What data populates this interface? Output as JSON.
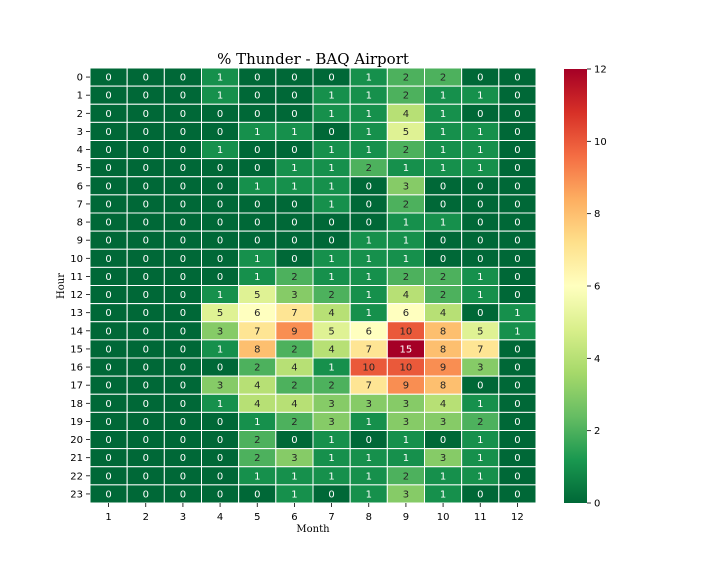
{
  "chart_data": {
    "type": "heatmap",
    "title": "% Thunder - BAQ Airport",
    "xlabel": "Month",
    "ylabel": "Hour",
    "x_categories": [
      "1",
      "2",
      "3",
      "4",
      "5",
      "6",
      "7",
      "8",
      "9",
      "10",
      "11",
      "12"
    ],
    "y_categories": [
      "0",
      "1",
      "2",
      "3",
      "4",
      "5",
      "6",
      "7",
      "8",
      "9",
      "10",
      "11",
      "12",
      "13",
      "14",
      "15",
      "16",
      "17",
      "18",
      "19",
      "20",
      "21",
      "22",
      "23"
    ],
    "values": [
      [
        0,
        0,
        0,
        1,
        0,
        0,
        0,
        1,
        2,
        2,
        0,
        0
      ],
      [
        0,
        0,
        0,
        1,
        0,
        0,
        1,
        1,
        2,
        1,
        1,
        0
      ],
      [
        0,
        0,
        0,
        0,
        0,
        0,
        1,
        1,
        4,
        1,
        0,
        0
      ],
      [
        0,
        0,
        0,
        0,
        1,
        1,
        0,
        1,
        5,
        1,
        1,
        0
      ],
      [
        0,
        0,
        0,
        1,
        0,
        0,
        1,
        1,
        2,
        1,
        1,
        0
      ],
      [
        0,
        0,
        0,
        0,
        0,
        1,
        1,
        2,
        1,
        1,
        1,
        0
      ],
      [
        0,
        0,
        0,
        0,
        1,
        1,
        1,
        0,
        3,
        0,
        0,
        0
      ],
      [
        0,
        0,
        0,
        0,
        0,
        0,
        1,
        0,
        2,
        0,
        0,
        0
      ],
      [
        0,
        0,
        0,
        0,
        0,
        0,
        0,
        0,
        1,
        1,
        0,
        0
      ],
      [
        0,
        0,
        0,
        0,
        0,
        0,
        0,
        1,
        1,
        0,
        0,
        0
      ],
      [
        0,
        0,
        0,
        0,
        1,
        0,
        1,
        1,
        1,
        0,
        0,
        0
      ],
      [
        0,
        0,
        0,
        0,
        1,
        2,
        1,
        1,
        2,
        2,
        1,
        0
      ],
      [
        0,
        0,
        0,
        1,
        5,
        3,
        2,
        1,
        4,
        2,
        1,
        0
      ],
      [
        0,
        0,
        0,
        5,
        6,
        7,
        4,
        1,
        6,
        4,
        0,
        1
      ],
      [
        0,
        0,
        0,
        3,
        7,
        9,
        5,
        6,
        10,
        8,
        5,
        1
      ],
      [
        0,
        0,
        0,
        1,
        8,
        2,
        4,
        7,
        15,
        8,
        7,
        0
      ],
      [
        0,
        0,
        0,
        0,
        2,
        4,
        1,
        10,
        10,
        9,
        3,
        0
      ],
      [
        0,
        0,
        0,
        3,
        4,
        2,
        2,
        7,
        9,
        8,
        0,
        0
      ],
      [
        0,
        0,
        0,
        1,
        4,
        4,
        3,
        3,
        3,
        4,
        1,
        0
      ],
      [
        0,
        0,
        0,
        0,
        1,
        2,
        3,
        1,
        3,
        3,
        2,
        0
      ],
      [
        0,
        0,
        0,
        0,
        2,
        0,
        1,
        0,
        1,
        0,
        1,
        0
      ],
      [
        0,
        0,
        0,
        0,
        2,
        3,
        1,
        1,
        1,
        3,
        1,
        0
      ],
      [
        0,
        0,
        0,
        0,
        1,
        1,
        1,
        1,
        2,
        1,
        1,
        0
      ],
      [
        0,
        0,
        0,
        0,
        0,
        1,
        0,
        1,
        3,
        1,
        0,
        0
      ]
    ],
    "colorbar": {
      "vmin": 0,
      "vmax": 12,
      "ticks": [
        "0",
        "2",
        "4",
        "6",
        "8",
        "10",
        "12"
      ],
      "colormap": "RdYlGn_r"
    },
    "grid": true,
    "cell_border_color": "#ffffff"
  }
}
